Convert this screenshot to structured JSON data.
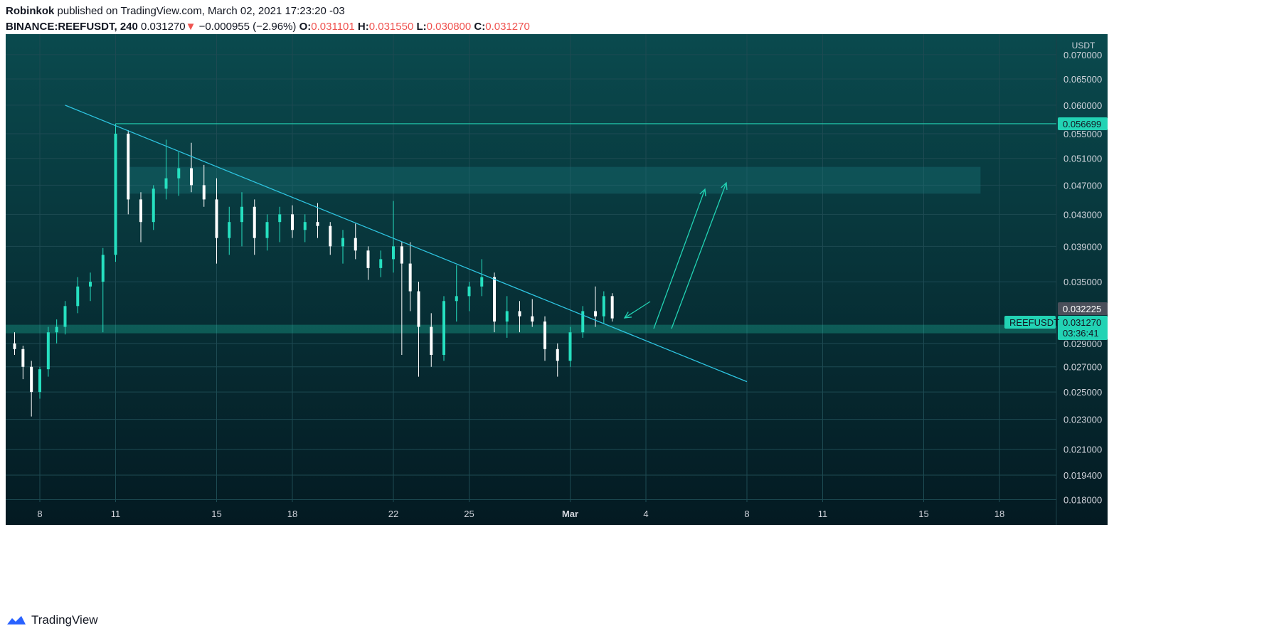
{
  "header": {
    "author": "Robinkok",
    "published": "published on TradingView.com, March 02, 2021 17:23:20 -03",
    "symbol": "BINANCE:REEFUSDT, 240",
    "last": "0.031270",
    "change_arrow": "▼",
    "change": "−0.000955 (−2.96%)",
    "open_label": "O:",
    "open": "0.031101",
    "high_label": "H:",
    "high": "0.031550",
    "low_label": "L:",
    "low": "0.030800",
    "close_label": "C:",
    "close": "0.031270"
  },
  "footer": {
    "brand": "TradingView",
    "logo_icon": "tradingview-logo-icon"
  },
  "colors": {
    "bg_top": "#0a4a4e",
    "bg_bottom": "#041a22",
    "up": "#26e0c0",
    "down": "#ffffff",
    "line": "#2ec4e0",
    "accent": "#22d3b4"
  },
  "chart_data": {
    "type": "candlestick",
    "unit_label": "USDT",
    "y_ticks": [
      "0.070000",
      "0.065000",
      "0.060000",
      "0.055000",
      "0.051000",
      "0.047000",
      "0.043000",
      "0.039000",
      "0.035000",
      "0.029000",
      "0.027000",
      "0.025000",
      "0.023000",
      "0.021000",
      "0.019400",
      "0.018000"
    ],
    "x_ticks": [
      "8",
      "11",
      "15",
      "18",
      "22",
      "25",
      "Mar",
      "4",
      "8",
      "11",
      "15",
      "18"
    ],
    "price_tags": [
      {
        "label": "0.056699",
        "kind": "resistance"
      },
      {
        "label": "0.032225",
        "kind": "gray"
      },
      {
        "label": "0.031270",
        "kind": "last",
        "sublabel": "03:36:41",
        "symbol": "REEFUSDT"
      }
    ],
    "resistance": 0.056699,
    "support": 0.0303,
    "zone": [
      0.0458,
      0.0497
    ],
    "trendline": [
      [
        "2021-02-09",
        0.06
      ],
      [
        "2021-03-08",
        0.0258
      ]
    ],
    "series": [
      {
        "t": "2021-02-07",
        "o": 0.029,
        "h": 0.03,
        "l": 0.028,
        "c": 0.0285
      },
      {
        "t": "2021-02-07 08:00",
        "o": 0.0285,
        "h": 0.0288,
        "l": 0.026,
        "c": 0.027
      },
      {
        "t": "2021-02-07 16:00",
        "o": 0.027,
        "h": 0.0275,
        "l": 0.0232,
        "c": 0.025
      },
      {
        "t": "2021-02-08",
        "o": 0.025,
        "h": 0.027,
        "l": 0.0245,
        "c": 0.0268
      },
      {
        "t": "2021-02-08 08:00",
        "o": 0.0268,
        "h": 0.0305,
        "l": 0.0262,
        "c": 0.03
      },
      {
        "t": "2021-02-08 16:00",
        "o": 0.03,
        "h": 0.0312,
        "l": 0.029,
        "c": 0.0305
      },
      {
        "t": "2021-02-09",
        "o": 0.0305,
        "h": 0.033,
        "l": 0.0298,
        "c": 0.0325
      },
      {
        "t": "2021-02-09 12:00",
        "o": 0.0325,
        "h": 0.0355,
        "l": 0.0318,
        "c": 0.0345
      },
      {
        "t": "2021-02-10",
        "o": 0.0345,
        "h": 0.036,
        "l": 0.033,
        "c": 0.035
      },
      {
        "t": "2021-02-10 12:00",
        "o": 0.035,
        "h": 0.0388,
        "l": 0.03,
        "c": 0.038
      },
      {
        "t": "2021-02-11",
        "o": 0.038,
        "h": 0.0567,
        "l": 0.0372,
        "c": 0.055
      },
      {
        "t": "2021-02-11 12:00",
        "o": 0.055,
        "h": 0.0556,
        "l": 0.043,
        "c": 0.045
      },
      {
        "t": "2021-02-12",
        "o": 0.045,
        "h": 0.046,
        "l": 0.0395,
        "c": 0.042
      },
      {
        "t": "2021-02-12 12:00",
        "o": 0.042,
        "h": 0.047,
        "l": 0.041,
        "c": 0.0465
      },
      {
        "t": "2021-02-13",
        "o": 0.0465,
        "h": 0.054,
        "l": 0.045,
        "c": 0.048
      },
      {
        "t": "2021-02-13 12:00",
        "o": 0.048,
        "h": 0.052,
        "l": 0.0455,
        "c": 0.0495
      },
      {
        "t": "2021-02-14",
        "o": 0.0495,
        "h": 0.0535,
        "l": 0.046,
        "c": 0.047
      },
      {
        "t": "2021-02-14 12:00",
        "o": 0.047,
        "h": 0.05,
        "l": 0.044,
        "c": 0.045
      },
      {
        "t": "2021-02-15",
        "o": 0.045,
        "h": 0.048,
        "l": 0.037,
        "c": 0.04
      },
      {
        "t": "2021-02-15 12:00",
        "o": 0.04,
        "h": 0.044,
        "l": 0.038,
        "c": 0.042
      },
      {
        "t": "2021-02-16",
        "o": 0.042,
        "h": 0.046,
        "l": 0.039,
        "c": 0.044
      },
      {
        "t": "2021-02-16 12:00",
        "o": 0.044,
        "h": 0.045,
        "l": 0.038,
        "c": 0.04
      },
      {
        "t": "2021-02-17",
        "o": 0.04,
        "h": 0.043,
        "l": 0.0385,
        "c": 0.042
      },
      {
        "t": "2021-02-17 12:00",
        "o": 0.042,
        "h": 0.044,
        "l": 0.0395,
        "c": 0.043
      },
      {
        "t": "2021-02-18",
        "o": 0.043,
        "h": 0.0442,
        "l": 0.04,
        "c": 0.041
      },
      {
        "t": "2021-02-18 12:00",
        "o": 0.041,
        "h": 0.043,
        "l": 0.0395,
        "c": 0.042
      },
      {
        "t": "2021-02-19",
        "o": 0.042,
        "h": 0.0445,
        "l": 0.04,
        "c": 0.0415
      },
      {
        "t": "2021-02-19 12:00",
        "o": 0.0415,
        "h": 0.042,
        "l": 0.038,
        "c": 0.039
      },
      {
        "t": "2021-02-20",
        "o": 0.039,
        "h": 0.041,
        "l": 0.037,
        "c": 0.04
      },
      {
        "t": "2021-02-20 12:00",
        "o": 0.04,
        "h": 0.0418,
        "l": 0.0375,
        "c": 0.0385
      },
      {
        "t": "2021-02-21",
        "o": 0.0385,
        "h": 0.039,
        "l": 0.0352,
        "c": 0.0365
      },
      {
        "t": "2021-02-21 12:00",
        "o": 0.0365,
        "h": 0.0385,
        "l": 0.0355,
        "c": 0.0375
      },
      {
        "t": "2021-02-22",
        "o": 0.0375,
        "h": 0.0448,
        "l": 0.036,
        "c": 0.039
      },
      {
        "t": "2021-02-22 08:00",
        "o": 0.039,
        "h": 0.0395,
        "l": 0.028,
        "c": 0.037
      },
      {
        "t": "2021-02-22 16:00",
        "o": 0.037,
        "h": 0.0395,
        "l": 0.032,
        "c": 0.034
      },
      {
        "t": "2021-02-23",
        "o": 0.034,
        "h": 0.035,
        "l": 0.0262,
        "c": 0.0305
      },
      {
        "t": "2021-02-23 12:00",
        "o": 0.0305,
        "h": 0.0318,
        "l": 0.027,
        "c": 0.028
      },
      {
        "t": "2021-02-24",
        "o": 0.028,
        "h": 0.0335,
        "l": 0.0275,
        "c": 0.033
      },
      {
        "t": "2021-02-24 12:00",
        "o": 0.033,
        "h": 0.0368,
        "l": 0.031,
        "c": 0.0335
      },
      {
        "t": "2021-02-25",
        "o": 0.0335,
        "h": 0.035,
        "l": 0.032,
        "c": 0.0345
      },
      {
        "t": "2021-02-25 12:00",
        "o": 0.0345,
        "h": 0.0375,
        "l": 0.0335,
        "c": 0.0355
      },
      {
        "t": "2021-02-26",
        "o": 0.0355,
        "h": 0.036,
        "l": 0.03,
        "c": 0.031
      },
      {
        "t": "2021-02-26 12:00",
        "o": 0.031,
        "h": 0.0335,
        "l": 0.0295,
        "c": 0.032
      },
      {
        "t": "2021-02-27",
        "o": 0.032,
        "h": 0.033,
        "l": 0.03,
        "c": 0.0315
      },
      {
        "t": "2021-02-27 12:00",
        "o": 0.0315,
        "h": 0.0332,
        "l": 0.0305,
        "c": 0.031
      },
      {
        "t": "2021-02-28",
        "o": 0.031,
        "h": 0.0315,
        "l": 0.0275,
        "c": 0.0285
      },
      {
        "t": "2021-02-28 12:00",
        "o": 0.0285,
        "h": 0.029,
        "l": 0.0262,
        "c": 0.0275
      },
      {
        "t": "2021-03-01",
        "o": 0.0275,
        "h": 0.0305,
        "l": 0.027,
        "c": 0.03
      },
      {
        "t": "2021-03-01 12:00",
        "o": 0.03,
        "h": 0.0325,
        "l": 0.0295,
        "c": 0.032
      },
      {
        "t": "2021-03-02",
        "o": 0.032,
        "h": 0.0345,
        "l": 0.0305,
        "c": 0.0315
      },
      {
        "t": "2021-03-02 08:00",
        "o": 0.0315,
        "h": 0.034,
        "l": 0.0308,
        "c": 0.0335
      },
      {
        "t": "2021-03-02 16:00",
        "o": 0.0335,
        "h": 0.0338,
        "l": 0.031,
        "c": 0.0313
      }
    ]
  }
}
